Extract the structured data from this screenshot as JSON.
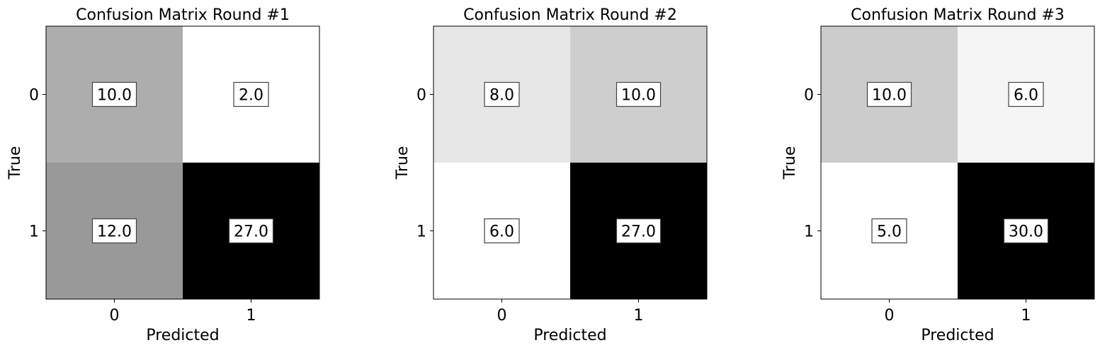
{
  "chart_data": [
    {
      "type": "heatmap",
      "title": "Confusion Matrix Round #1",
      "xlabel": "Predicted",
      "ylabel": "True",
      "x_categories": [
        "0",
        "1"
      ],
      "y_categories": [
        "0",
        "1"
      ],
      "cells": [
        [
          "10.0",
          "2.0"
        ],
        [
          "12.0",
          "27.0"
        ]
      ],
      "values": [
        [
          10,
          2
        ],
        [
          12,
          27
        ]
      ],
      "colormap": "grayscale-reversed"
    },
    {
      "type": "heatmap",
      "title": "Confusion Matrix Round #2",
      "xlabel": "Predicted",
      "ylabel": "True",
      "x_categories": [
        "0",
        "1"
      ],
      "y_categories": [
        "0",
        "1"
      ],
      "cells": [
        [
          "8.0",
          "10.0"
        ],
        [
          "6.0",
          "27.0"
        ]
      ],
      "values": [
        [
          8,
          10
        ],
        [
          6,
          27
        ]
      ],
      "colormap": "grayscale-reversed"
    },
    {
      "type": "heatmap",
      "title": "Confusion Matrix Round #3",
      "xlabel": "Predicted",
      "ylabel": "True",
      "x_categories": [
        "0",
        "1"
      ],
      "y_categories": [
        "0",
        "1"
      ],
      "cells": [
        [
          "10.0",
          "6.0"
        ],
        [
          "5.0",
          "30.0"
        ]
      ],
      "values": [
        [
          10,
          6
        ],
        [
          5,
          30
        ]
      ],
      "colormap": "grayscale-reversed"
    }
  ]
}
